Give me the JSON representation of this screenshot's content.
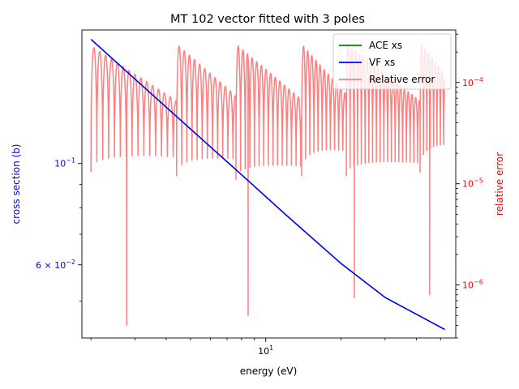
{
  "chart_data": {
    "type": "line",
    "title": "MT 102 vector fitted with 3 poles",
    "xlabel": "energy (eV)",
    "ylabel_left": "cross section (b)",
    "ylabel_right": "relative error",
    "x_scale": "log",
    "y_left_scale": "log",
    "y_right_scale": "log",
    "x_range": [
      1.84,
      57.5
    ],
    "y_left_range": [
      0.0415,
      0.196
    ],
    "y_right_range": [
      3e-07,
      0.00033
    ],
    "x_major_ticks": [
      {
        "value": 10,
        "label": "10^1"
      }
    ],
    "y_left_major_ticks": [
      {
        "value": 0.1,
        "label": "10^-1"
      },
      {
        "value": 0.06,
        "label": "6 × 10^-2"
      }
    ],
    "y_right_major_ticks": [
      {
        "value": 0.0001,
        "label": "10^-4"
      },
      {
        "value": 1e-05,
        "label": "10^-5"
      },
      {
        "value": 1e-06,
        "label": "10^-6"
      }
    ],
    "grid": false,
    "legend_position": "upper-right",
    "colors": {
      "ace": "#008000",
      "vf": "#0000ff",
      "error": "#ff7f7f",
      "right_axis": "#ff0000",
      "left_axis": "#0000ff"
    },
    "series": [
      {
        "name": "ACE xs",
        "color": "#008000",
        "x": [
          2.0,
          3.0,
          5.0,
          8.0,
          12.0,
          20.0,
          30.0,
          52.0
        ],
        "y": [
          0.187,
          0.153,
          0.119,
          0.0945,
          0.0773,
          0.0604,
          0.0509,
          0.0433
        ]
      },
      {
        "name": "VF xs",
        "color": "#0000ff",
        "x": [
          2.0,
          3.0,
          5.0,
          8.0,
          12.0,
          20.0,
          30.0,
          52.0
        ],
        "y": [
          0.187,
          0.153,
          0.119,
          0.0945,
          0.0773,
          0.0604,
          0.0509,
          0.0433
        ]
      },
      {
        "name": "Relative error",
        "color": "#ff7f7f",
        "axis": "right",
        "segments": [
          {
            "x_start": 2.0,
            "x_end": 4.4,
            "peak_start": 0.00023,
            "peak_end": 6.6e-05,
            "period": 0.0235,
            "min": 1.3e-05
          },
          {
            "x_start": 4.4,
            "x_end": 7.6,
            "peak_start": 0.00024,
            "peak_end": 7.4e-05,
            "period": 0.0205,
            "min": 1.2e-05
          },
          {
            "x_start": 7.6,
            "x_end": 13.9,
            "peak_start": 0.00024,
            "peak_end": 6.8e-05,
            "period": 0.0185,
            "min": 1.1e-05
          },
          {
            "x_start": 13.9,
            "x_end": 21.0,
            "peak_start": 0.00024,
            "peak_end": 7.6e-05,
            "period": 0.0165,
            "min": 1.2e-05
          },
          {
            "x_start": 21.0,
            "x_end": 41.4,
            "peak_start": 0.00024,
            "peak_end": 6.6e-05,
            "period": 0.015,
            "min": 1.2e-05
          },
          {
            "x_start": 41.4,
            "x_end": 52.0,
            "peak_start": 0.00025,
            "peak_end": 0.00012,
            "period": 0.0135,
            "min": 1.3e-05
          }
        ],
        "deep_minima": [
          {
            "x": 2.78,
            "y": 4e-07
          },
          {
            "x": 8.5,
            "y": 5e-07
          },
          {
            "x": 22.6,
            "y": 7.5e-07
          },
          {
            "x": 45.2,
            "y": 8e-07
          }
        ]
      }
    ]
  }
}
